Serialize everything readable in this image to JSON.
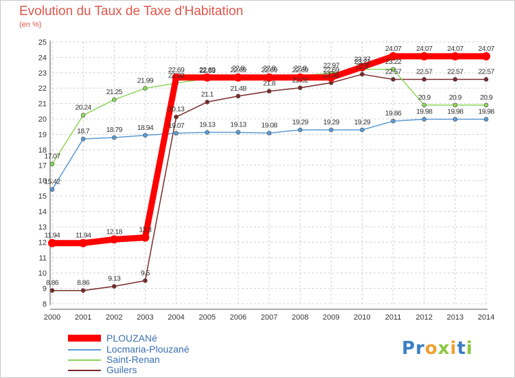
{
  "title": "Evolution du Taux de Taxe d'Habitation",
  "subtitle": "(en %)",
  "logo": "Proxiti",
  "chart_data": {
    "type": "line",
    "x": [
      2000,
      2001,
      2002,
      2003,
      2004,
      2005,
      2006,
      2007,
      2008,
      2009,
      2010,
      2011,
      2012,
      2013,
      2014
    ],
    "ylim": [
      8,
      25
    ],
    "yticks": [
      8,
      9,
      10,
      11,
      12,
      13,
      14,
      15,
      16,
      17,
      18,
      19,
      20,
      21,
      22,
      23,
      24,
      25
    ],
    "grid": true,
    "legend_position": "bottom-left",
    "series": [
      {
        "name": "PLOUZANé",
        "color": "#ff0000",
        "values": [
          11.94,
          11.94,
          12.18,
          12.3,
          22.69,
          22.69,
          22.69,
          22.69,
          22.69,
          22.69,
          23.37,
          24.07,
          24.07,
          24.07,
          24.07
        ],
        "labels": [
          "11.94",
          "11.94",
          "12.18",
          "12.3",
          "22.69",
          "22.69",
          "22.69",
          "22.69",
          "22.69",
          "22.69",
          "23.37",
          "24.07",
          "24.07",
          "24.07",
          "24.07"
        ]
      },
      {
        "name": "Locmaria-Plouzané",
        "color": "#5b9bd5",
        "values": [
          15.42,
          18.7,
          18.79,
          18.94,
          19.07,
          19.13,
          19.13,
          19.08,
          19.29,
          19.29,
          19.29,
          19.86,
          19.98,
          19.98,
          19.98
        ],
        "labels": [
          "15.42",
          "18.7",
          "18.79",
          "18.94",
          "19.07",
          "19.13",
          "19.13",
          "19.08",
          "19.29",
          "19.29",
          "19.29",
          "19.86",
          "19.98",
          "19.98",
          "19.98"
        ]
      },
      {
        "name": "Saint-Renan",
        "color": "#8cd65a",
        "values": [
          17.07,
          20.24,
          21.25,
          21.99,
          22.32,
          22.63,
          22.8,
          22.8,
          22.8,
          22.97,
          23.22,
          23.22,
          20.9,
          20.9,
          20.9
        ],
        "labels": [
          "17.07",
          "20.24",
          "21.25",
          "21.99",
          "22.32",
          "22.63",
          "22.8",
          "22.8",
          "22.8",
          "22.97",
          "23.22",
          "23.22",
          "20.9",
          "20.9",
          "20.9"
        ]
      },
      {
        "name": "Guilers",
        "color": "#7a2a2a",
        "values": [
          8.86,
          8.86,
          9.13,
          9.5,
          20.13,
          21.1,
          21.48,
          21.8,
          22.02,
          22.35,
          22.9,
          22.57,
          22.57,
          22.57,
          22.57
        ],
        "labels": [
          "8.86",
          "8.86",
          "9.13",
          "9.5",
          "20.13",
          "21.1",
          "21.48",
          "21.8",
          "22.02",
          "22.35",
          "22.9",
          "22.57",
          "22.57",
          "22.57",
          "22.57"
        ]
      }
    ]
  }
}
